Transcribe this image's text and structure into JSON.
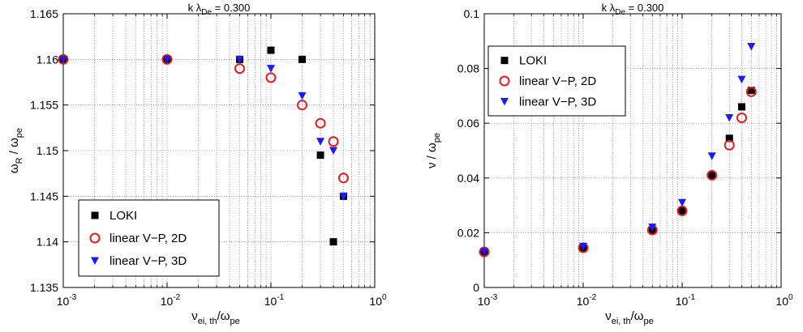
{
  "chart_data": [
    {
      "type": "scatter",
      "title_pre": "k λ",
      "title_sub": "De",
      "title_post": " = 0.300",
      "xlabel_main": "ν",
      "xlabel_sub": "ei, th",
      "xlabel_mid": "/ω",
      "xlabel_sub2": "pe",
      "ylabel_main": "ω",
      "ylabel_sub": "R",
      "ylabel_mid": " / ω",
      "ylabel_sub2": "pe",
      "xscale": "log",
      "xlim": [
        0.001,
        1
      ],
      "ylim": [
        1.135,
        1.165
      ],
      "xticks": [
        0.001,
        0.01,
        0.1,
        1
      ],
      "xtick_exponents": [
        "-3",
        "-2",
        "-1",
        "0"
      ],
      "xtick_base": "10",
      "yticks": [
        "1.135",
        "1.14",
        "1.145",
        "1.15",
        "1.155",
        "1.16",
        "1.165"
      ],
      "grid": true,
      "legend_position": "bottom-left",
      "series": [
        {
          "name": "LOKI",
          "marker": "square",
          "color": "#000000",
          "x": [
            0.001,
            0.01,
            0.05,
            0.1,
            0.2,
            0.3,
            0.4,
            0.5
          ],
          "y": [
            1.16,
            1.16,
            1.16,
            1.161,
            1.16,
            1.1495,
            1.14,
            1.145
          ]
        },
        {
          "name": "linear V−P, 2D",
          "marker": "circle",
          "color": "#e41a1c",
          "x": [
            0.001,
            0.01,
            0.05,
            0.1,
            0.2,
            0.3,
            0.4,
            0.5
          ],
          "y": [
            1.16,
            1.16,
            1.159,
            1.158,
            1.155,
            1.153,
            1.151,
            1.147
          ]
        },
        {
          "name": "linear V−P, 3D",
          "marker": "triangle-down",
          "color": "#1a1aff",
          "x": [
            0.001,
            0.01,
            0.05,
            0.1,
            0.2,
            0.3,
            0.4,
            0.5
          ],
          "y": [
            1.16,
            1.16,
            1.16,
            1.159,
            1.156,
            1.151,
            1.15,
            1.145
          ]
        }
      ]
    },
    {
      "type": "scatter",
      "title_pre": "k λ",
      "title_sub": "De",
      "title_post": " = 0.300",
      "xlabel_main": "ν",
      "xlabel_sub": "ei, th",
      "xlabel_mid": "/ω",
      "xlabel_sub2": "pe",
      "ylabel_main": "ν / ω",
      "ylabel_sub": "pe",
      "xscale": "log",
      "xlim": [
        0.001,
        1
      ],
      "ylim": [
        0,
        0.1
      ],
      "xticks": [
        0.001,
        0.01,
        0.1,
        1
      ],
      "xtick_exponents": [
        "-3",
        "-2",
        "-1",
        "0"
      ],
      "xtick_base": "10",
      "yticks": [
        "0",
        "0.02",
        "0.04",
        "0.06",
        "0.08",
        "0.1"
      ],
      "grid": true,
      "legend_position": "top-left",
      "series": [
        {
          "name": "LOKI",
          "marker": "square",
          "color": "#000000",
          "x": [
            0.001,
            0.01,
            0.05,
            0.1,
            0.2,
            0.3,
            0.4,
            0.5
          ],
          "y": [
            0.013,
            0.0145,
            0.021,
            0.028,
            0.041,
            0.0545,
            0.066,
            0.072
          ]
        },
        {
          "name": "linear V−P, 2D",
          "marker": "circle",
          "color": "#e41a1c",
          "x": [
            0.001,
            0.01,
            0.05,
            0.1,
            0.2,
            0.3,
            0.4,
            0.5
          ],
          "y": [
            0.013,
            0.0145,
            0.021,
            0.028,
            0.041,
            0.052,
            0.062,
            0.0715
          ]
        },
        {
          "name": "linear V−P, 3D",
          "marker": "triangle-down",
          "color": "#1a1aff",
          "x": [
            0.001,
            0.01,
            0.05,
            0.1,
            0.2,
            0.3,
            0.4,
            0.5
          ],
          "y": [
            0.013,
            0.015,
            0.022,
            0.031,
            0.048,
            0.062,
            0.076,
            0.088
          ]
        }
      ]
    }
  ]
}
